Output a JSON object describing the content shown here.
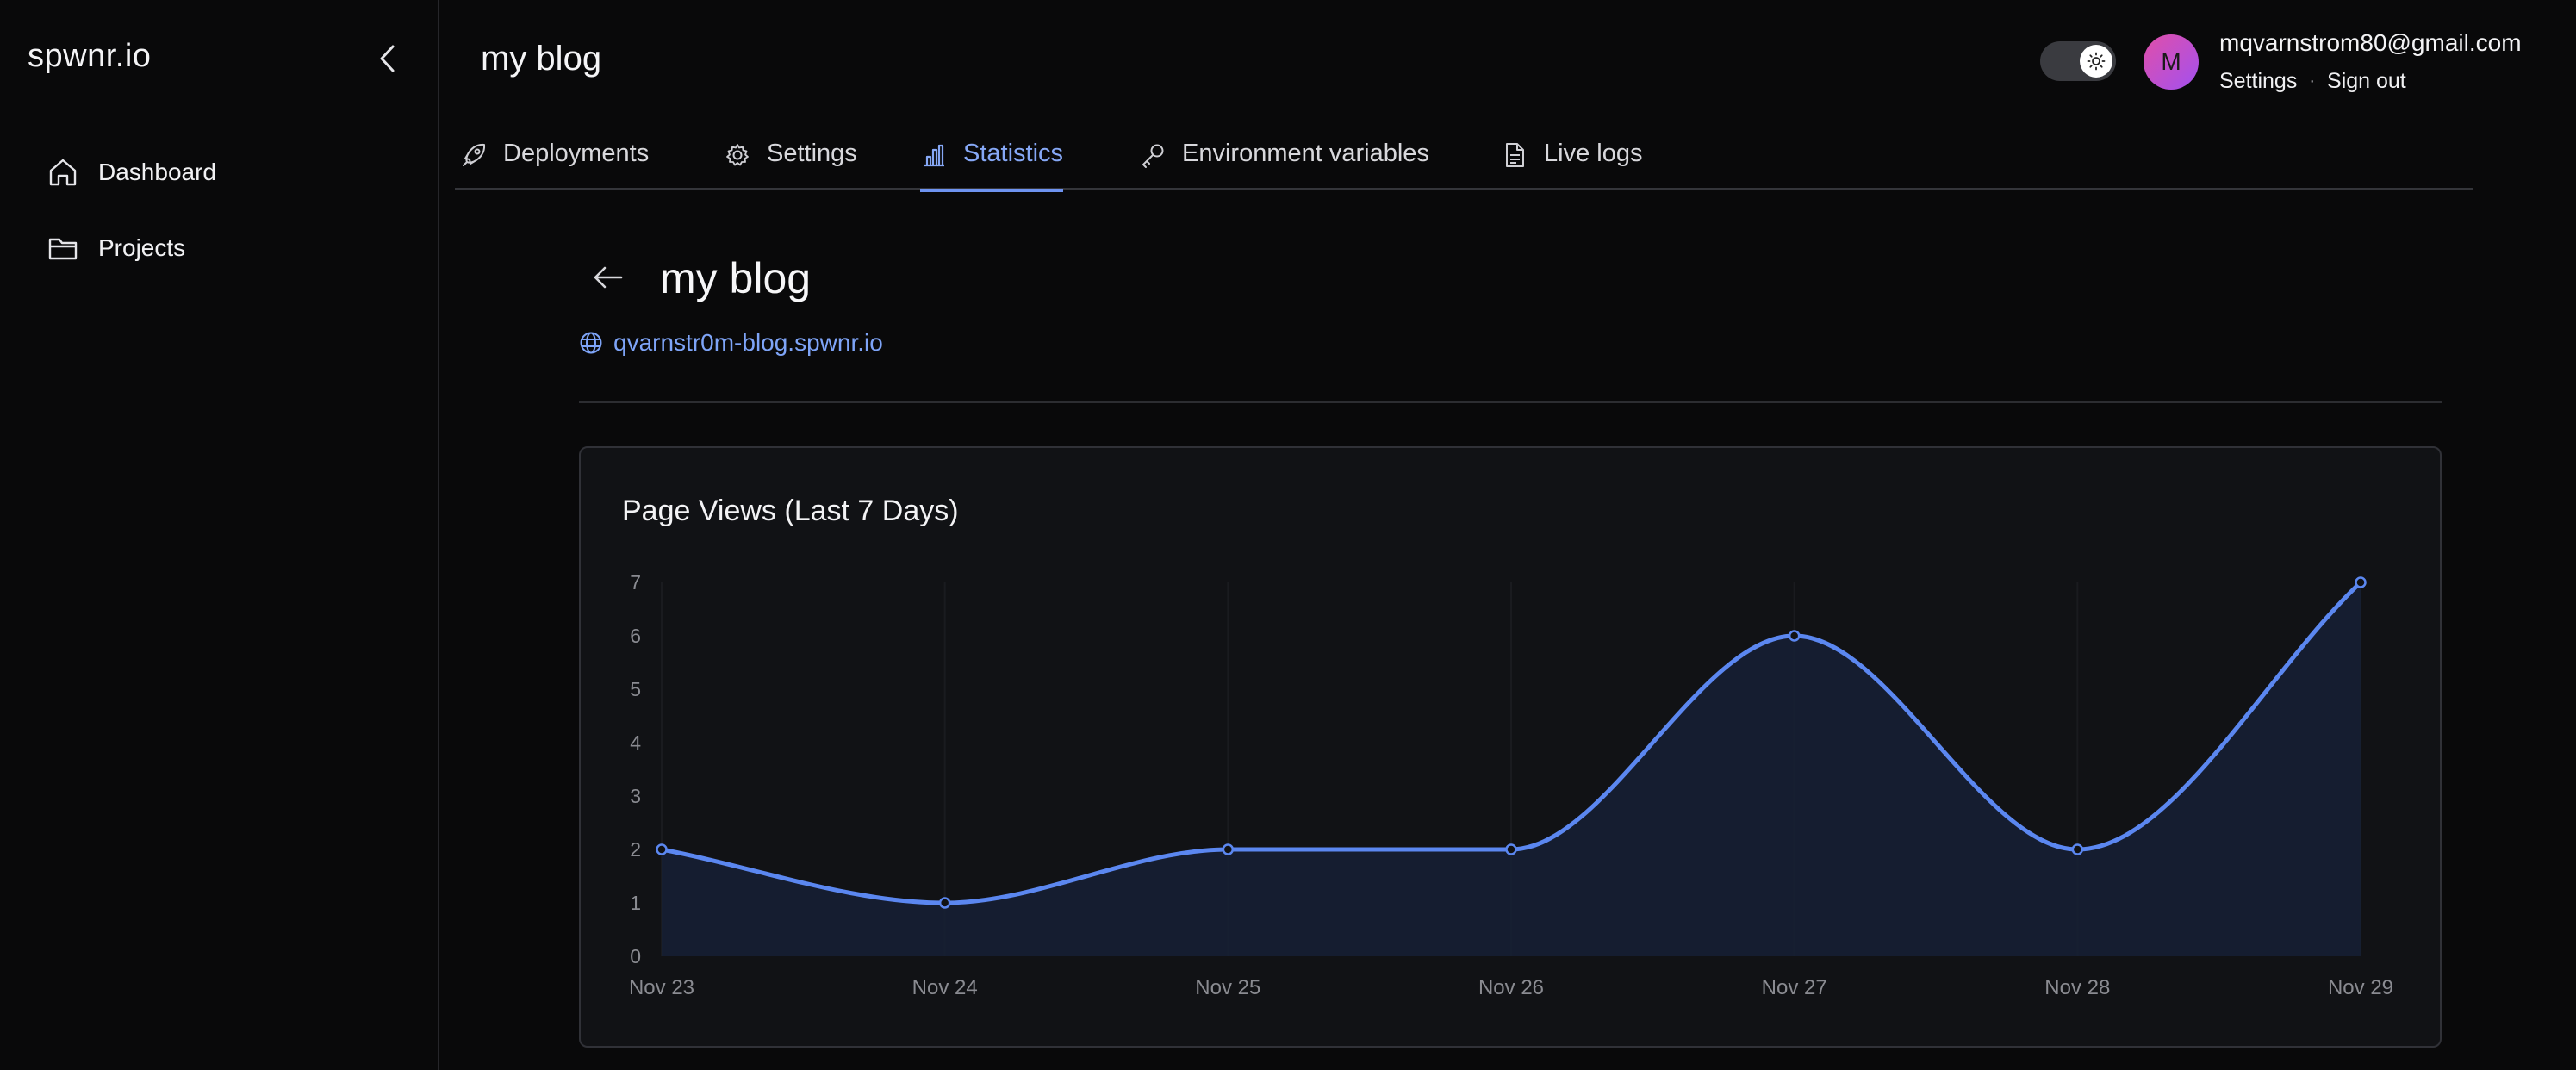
{
  "sidebar": {
    "brand": "spwnr.io",
    "items": [
      {
        "label": "Dashboard",
        "icon": "home-icon"
      },
      {
        "label": "Projects",
        "icon": "folder-icon"
      }
    ]
  },
  "header": {
    "title": "my blog",
    "theme_toggle": "light",
    "user": {
      "avatar_initial": "M",
      "email": "mqvarnstrom80@gmail.com",
      "settings_label": "Settings",
      "separator": "·",
      "sign_out_label": "Sign out"
    }
  },
  "tabs": [
    {
      "label": "Deployments",
      "icon": "rocket-icon",
      "active": false
    },
    {
      "label": "Settings",
      "icon": "gear-icon",
      "active": false
    },
    {
      "label": "Statistics",
      "icon": "bar-chart-icon",
      "active": true
    },
    {
      "label": "Environment variables",
      "icon": "key-icon",
      "active": false
    },
    {
      "label": "Live logs",
      "icon": "file-icon",
      "active": false
    }
  ],
  "project": {
    "title": "my blog",
    "url": "qvarnstr0m-blog.spwnr.io"
  },
  "colors": {
    "accent": "#5b87f0",
    "link": "#7ea4f7",
    "background": "#09090a",
    "card": "#111215"
  },
  "chart_data": {
    "type": "area",
    "title": "Page Views (Last 7 Days)",
    "categories": [
      "Nov 23",
      "Nov 24",
      "Nov 25",
      "Nov 26",
      "Nov 27",
      "Nov 28",
      "Nov 29"
    ],
    "series": [
      {
        "values": [
          2,
          1,
          2,
          2,
          6,
          2,
          7
        ]
      }
    ],
    "y_ticks": [
      "0",
      "1",
      "2",
      "3",
      "4",
      "5",
      "6",
      "7"
    ],
    "ylim": [
      0,
      7
    ],
    "grid": "vertical",
    "legend": "none"
  }
}
